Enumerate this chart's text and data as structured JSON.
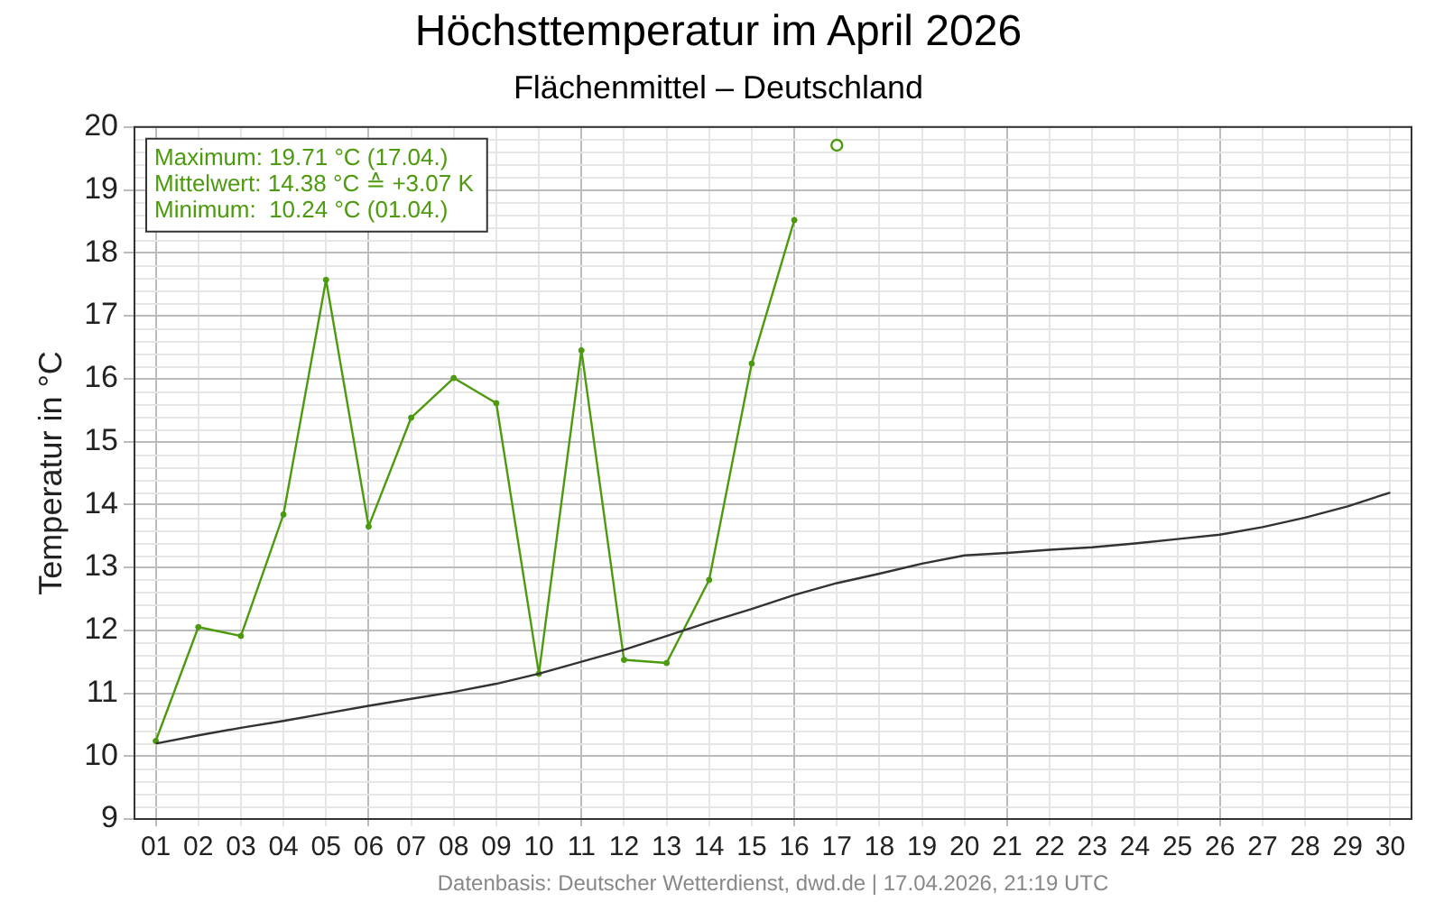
{
  "chart_data": {
    "type": "line",
    "title": "Höchsttemperatur im April 2026",
    "subtitle": "Flächenmittel – Deutschland",
    "ylabel": "Temperatur in °C",
    "categories": [
      "01",
      "02",
      "03",
      "04",
      "05",
      "06",
      "07",
      "08",
      "09",
      "10",
      "11",
      "12",
      "13",
      "14",
      "15",
      "16",
      "17",
      "18",
      "19",
      "20",
      "21",
      "22",
      "23",
      "24",
      "25",
      "26",
      "27",
      "28",
      "29",
      "30"
    ],
    "ylim": [
      9,
      20
    ],
    "yticks": [
      9,
      10,
      11,
      12,
      13,
      14,
      15,
      16,
      17,
      18,
      19,
      20
    ],
    "grid": true,
    "legend": false,
    "series": [
      {
        "color": "#333333",
        "marker": "none",
        "values": [
          10.2,
          10.33,
          10.45,
          10.56,
          10.68,
          10.8,
          10.91,
          11.02,
          11.15,
          11.31,
          11.5,
          11.69,
          11.91,
          12.13,
          12.34,
          12.56,
          12.75,
          12.9,
          13.06,
          13.19,
          13.23,
          13.28,
          13.32,
          13.38,
          13.45,
          13.52,
          13.64,
          13.79,
          13.97,
          14.19
        ]
      },
      {
        "color": "#4c9a0e",
        "marker": "circle",
        "values": [
          10.24,
          12.05,
          11.91,
          13.84,
          17.57,
          13.65,
          15.38,
          16.01,
          15.61,
          11.31,
          16.45,
          11.53,
          11.48,
          12.8,
          16.24,
          18.52,
          null,
          null,
          null,
          null,
          null,
          null,
          null,
          null,
          null,
          null,
          null,
          null,
          null,
          null
        ]
      },
      {
        "type": "scatter",
        "color": "#4c9a0e",
        "marker": "circle",
        "values": [
          null,
          null,
          null,
          null,
          null,
          null,
          null,
          null,
          null,
          null,
          null,
          null,
          null,
          null,
          null,
          null,
          19.71,
          null,
          null,
          null,
          null,
          null,
          null,
          null,
          null,
          null,
          null,
          null,
          null,
          null
        ]
      }
    ],
    "annotations": [
      "Maximum: 19.71 °C (17.04.)",
      "Mittelwert: 14.38 °C ≙ +3.07 K",
      "Minimum:  10.24 °C (01.04.)",
      "Datenbasis: Deutscher Wetterdienst, dwd.de | 17.04.2026, 21:19 UTC"
    ]
  }
}
